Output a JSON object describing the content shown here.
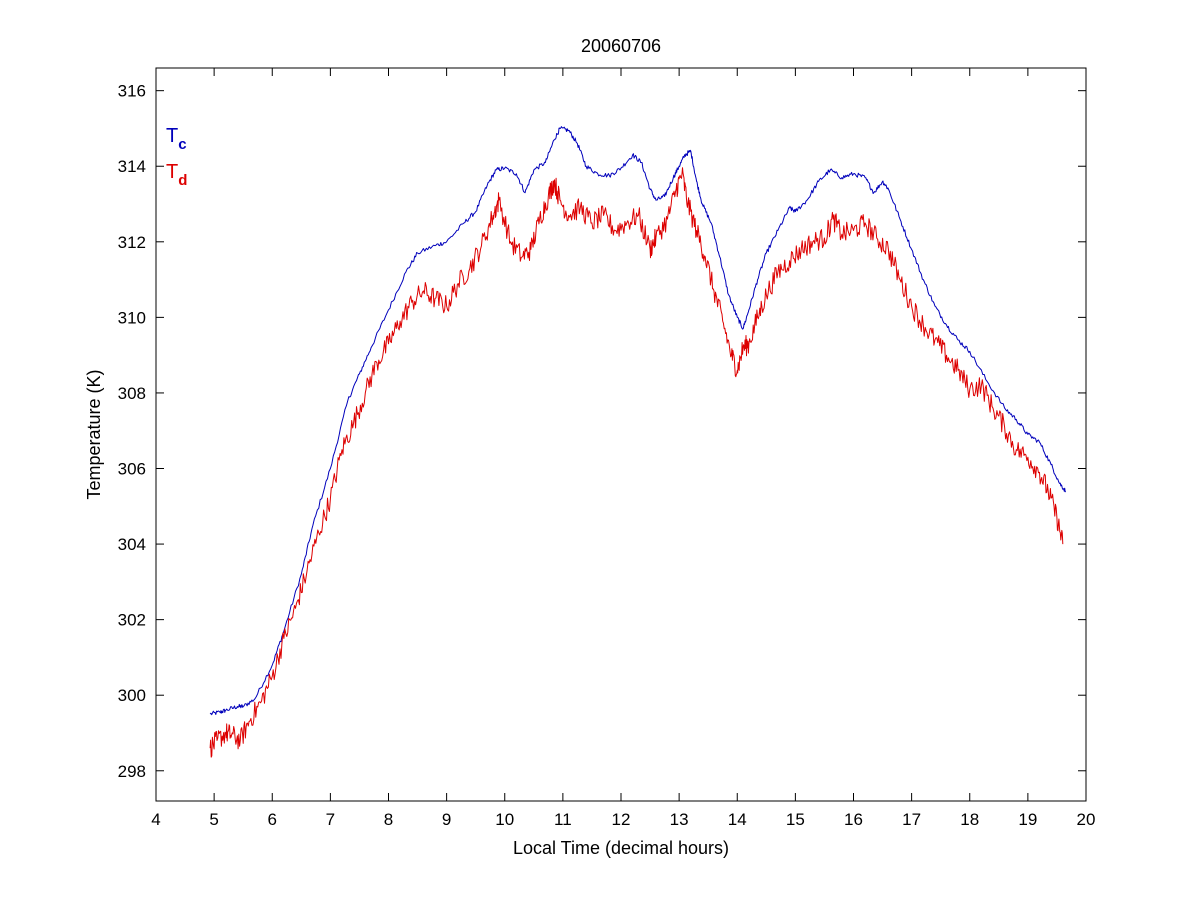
{
  "chart_data": {
    "type": "line",
    "title": "20060706",
    "xlabel": "Local Time (decimal hours)",
    "ylabel": "Temperature (K)",
    "xlim": [
      4,
      20
    ],
    "ylim": [
      297.2,
      316.6
    ],
    "xticks": [
      4,
      5,
      6,
      7,
      8,
      9,
      10,
      11,
      12,
      13,
      14,
      15,
      16,
      17,
      18,
      19,
      20
    ],
    "yticks": [
      298,
      300,
      302,
      304,
      306,
      308,
      310,
      312,
      314,
      316
    ],
    "grid": false,
    "legend_position": "top-left",
    "series": [
      {
        "name": "T",
        "subscript": "c",
        "color": "#0000bb",
        "x": [
          4.93,
          5.1,
          5.2,
          5.4,
          5.5,
          5.7,
          6.0,
          6.2,
          6.5,
          6.7,
          7.0,
          7.3,
          7.5,
          7.7,
          8.0,
          8.3,
          8.5,
          8.8,
          9.0,
          9.3,
          9.5,
          9.7,
          9.85,
          10.0,
          10.2,
          10.35,
          10.5,
          10.7,
          10.85,
          10.95,
          11.1,
          11.25,
          11.4,
          11.6,
          11.8,
          12.0,
          12.2,
          12.35,
          12.5,
          12.6,
          12.75,
          12.9,
          13.0,
          13.1,
          13.2,
          13.3,
          13.4,
          13.55,
          13.7,
          13.85,
          14.0,
          14.1,
          14.2,
          14.35,
          14.5,
          14.7,
          14.9,
          15.0,
          15.2,
          15.4,
          15.6,
          15.8,
          16.0,
          16.2,
          16.35,
          16.5,
          16.6,
          16.8,
          17.0,
          17.2,
          17.4,
          17.6,
          17.8,
          18.0,
          18.3,
          18.6,
          18.8,
          19.0,
          19.2,
          19.4,
          19.55,
          19.65
        ],
        "values": [
          299.5,
          299.55,
          299.6,
          299.7,
          299.7,
          299.9,
          300.8,
          301.7,
          303.2,
          304.5,
          306.0,
          307.8,
          308.5,
          309.2,
          310.2,
          311.2,
          311.7,
          311.9,
          312.0,
          312.5,
          312.8,
          313.5,
          313.9,
          313.95,
          313.8,
          313.3,
          313.9,
          314.1,
          314.7,
          315.0,
          314.95,
          314.6,
          314.0,
          313.8,
          313.75,
          313.95,
          314.3,
          314.1,
          313.4,
          313.1,
          313.2,
          313.7,
          314.0,
          314.3,
          314.4,
          313.6,
          313.0,
          312.5,
          311.6,
          310.6,
          310.0,
          309.7,
          310.2,
          311.0,
          311.7,
          312.3,
          312.9,
          312.8,
          313.1,
          313.6,
          313.9,
          313.7,
          313.8,
          313.7,
          313.3,
          313.6,
          313.4,
          312.6,
          311.8,
          311.0,
          310.3,
          309.8,
          309.4,
          309.1,
          308.3,
          307.6,
          307.3,
          306.9,
          306.7,
          306.1,
          305.6,
          305.4
        ]
      },
      {
        "name": "T",
        "subscript": "d",
        "color": "#dd0000",
        "x": [
          4.93,
          5.05,
          5.2,
          5.3,
          5.45,
          5.6,
          5.8,
          6.0,
          6.2,
          6.4,
          6.6,
          6.8,
          7.0,
          7.2,
          7.4,
          7.6,
          7.8,
          8.0,
          8.2,
          8.4,
          8.6,
          8.8,
          9.0,
          9.2,
          9.4,
          9.6,
          9.8,
          9.9,
          10.1,
          10.3,
          10.45,
          10.6,
          10.75,
          10.85,
          10.95,
          11.1,
          11.3,
          11.5,
          11.7,
          11.9,
          12.1,
          12.3,
          12.5,
          12.6,
          12.8,
          12.95,
          13.05,
          13.15,
          13.3,
          13.45,
          13.6,
          13.75,
          13.9,
          14.0,
          14.1,
          14.2,
          14.35,
          14.5,
          14.7,
          14.9,
          15.1,
          15.3,
          15.5,
          15.65,
          15.8,
          16.0,
          16.2,
          16.4,
          16.6,
          16.8,
          17.0,
          17.2,
          17.4,
          17.6,
          17.8,
          18.0,
          18.2,
          18.4,
          18.6,
          18.8,
          19.0,
          19.2,
          19.35,
          19.5,
          19.6
        ],
        "values": [
          298.6,
          298.8,
          299.0,
          298.95,
          298.8,
          299.3,
          299.8,
          300.5,
          301.5,
          302.3,
          303.3,
          304.3,
          305.2,
          306.5,
          307.2,
          308.0,
          308.8,
          309.3,
          309.9,
          310.4,
          310.7,
          310.5,
          310.3,
          310.9,
          311.3,
          311.9,
          312.7,
          313.1,
          312.0,
          311.6,
          311.8,
          312.6,
          313.2,
          313.6,
          313.1,
          312.7,
          312.9,
          312.5,
          312.7,
          312.3,
          312.5,
          312.7,
          311.8,
          312.1,
          312.6,
          313.4,
          313.8,
          313.0,
          312.3,
          311.6,
          310.7,
          309.9,
          309.0,
          308.6,
          309.2,
          309.3,
          310.0,
          310.6,
          311.2,
          311.5,
          311.8,
          312.0,
          312.1,
          312.6,
          312.2,
          312.3,
          312.5,
          312.1,
          311.8,
          311.0,
          310.3,
          309.8,
          309.4,
          309.0,
          308.6,
          308.1,
          308.2,
          307.6,
          307.1,
          306.5,
          306.3,
          305.9,
          305.4,
          304.7,
          304.0
        ]
      }
    ]
  }
}
